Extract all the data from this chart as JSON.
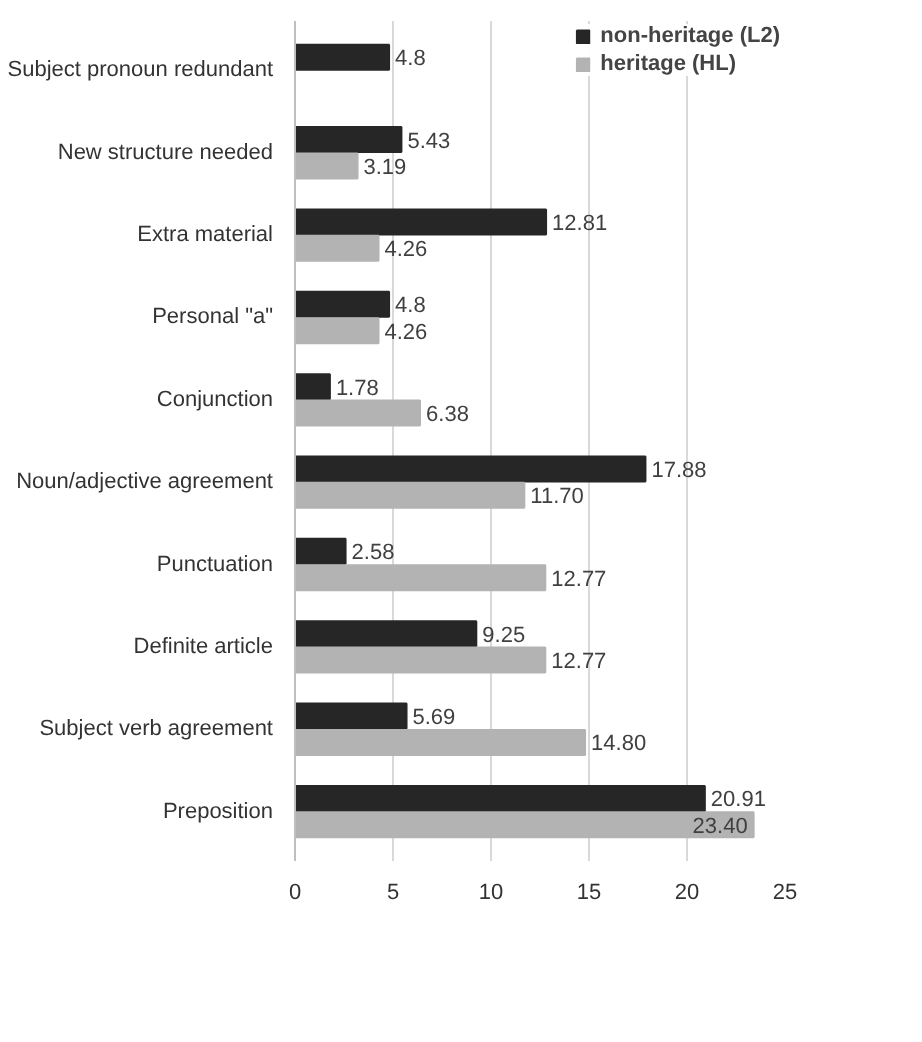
{
  "chart_data": {
    "type": "bar",
    "orientation": "horizontal",
    "categories": [
      "Subject pronoun redundant",
      "New structure needed",
      "Extra material",
      "Personal \"a\"",
      "Conjunction",
      "Noun/adjective agreement",
      "Punctuation",
      "Definite article",
      "Subject verb agreement",
      "Preposition"
    ],
    "series": [
      {
        "name": "non-heritage (L2)",
        "color": "#262626",
        "values": [
          4.8,
          5.43,
          12.81,
          4.8,
          1.78,
          17.88,
          2.58,
          9.25,
          5.69,
          20.91
        ],
        "value_labels": [
          "4.8",
          "5.43",
          "12.81",
          "4.8",
          "1.78",
          "17.88",
          "2.58",
          "9.25",
          "5.69",
          "20.91"
        ]
      },
      {
        "name": "heritage (HL)",
        "color": "#b3b3b3",
        "values": [
          null,
          3.19,
          4.26,
          4.26,
          6.38,
          11.7,
          12.77,
          12.77,
          14.8,
          23.4
        ],
        "value_labels": [
          null,
          "3.19",
          "4.26",
          "4.26",
          "6.38",
          "11.70",
          "12.77",
          "12.77",
          "14.80",
          "23.40"
        ]
      }
    ],
    "xlim": [
      0,
      25
    ],
    "xticks": [
      0,
      5,
      10,
      15,
      20,
      25
    ],
    "grid": "x",
    "legend": "top right"
  }
}
